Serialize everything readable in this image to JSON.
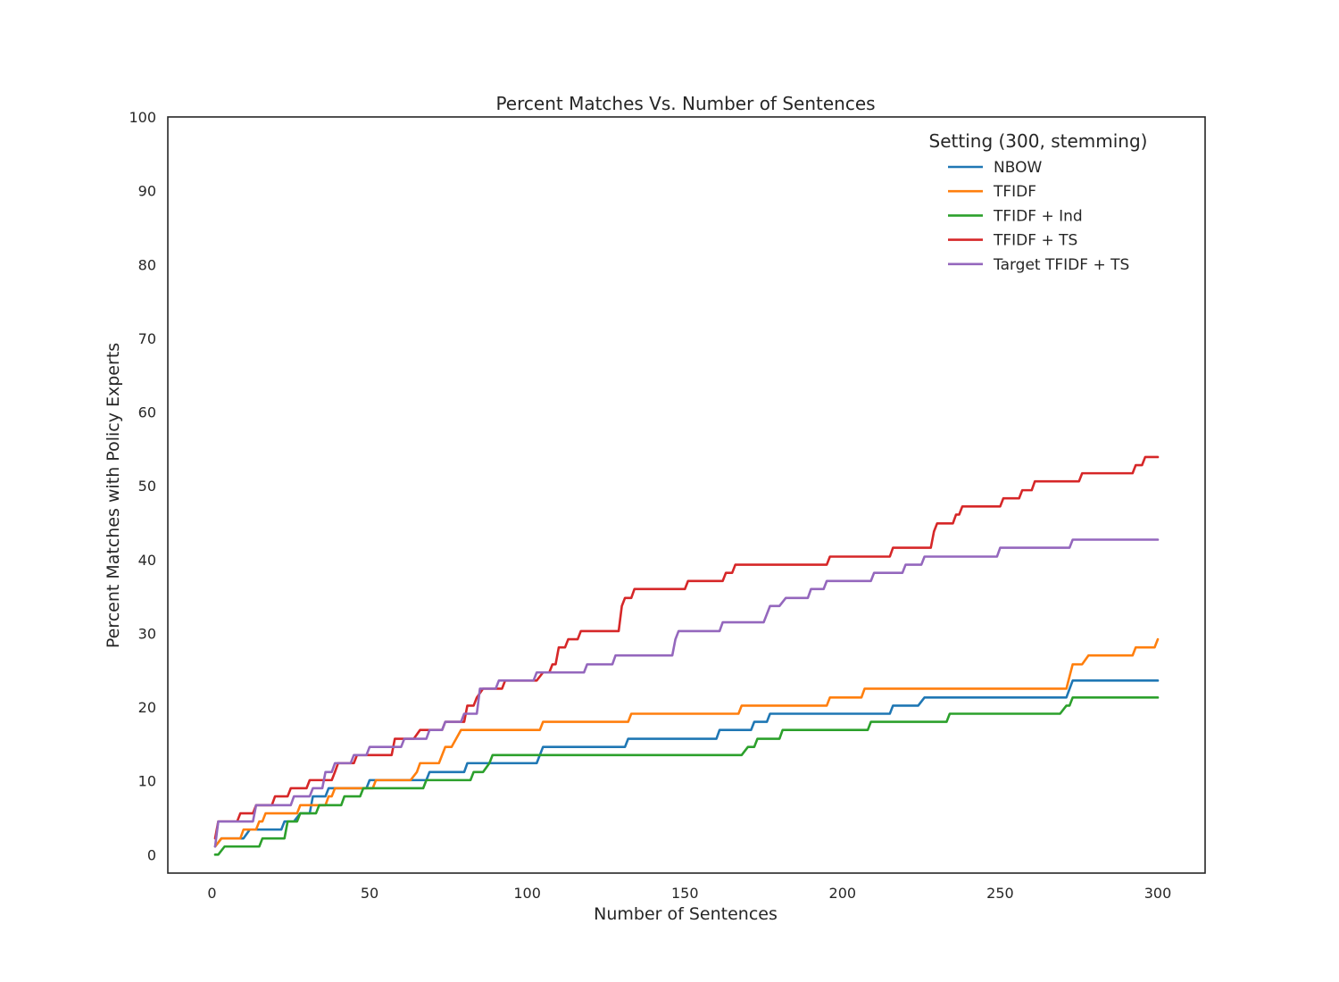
{
  "chart_data": {
    "type": "line",
    "title": "Percent Matches Vs. Number of Sentences",
    "xlabel": "Number of Sentences",
    "ylabel": "Percent Matches with Policy Experts",
    "xlim": [
      -14,
      315
    ],
    "ylim": [
      -2.5,
      100
    ],
    "xticks": [
      0,
      50,
      100,
      150,
      200,
      250,
      300
    ],
    "yticks": [
      0,
      10,
      20,
      30,
      40,
      50,
      60,
      70,
      80,
      90,
      100
    ],
    "xtick_labels": [
      "0",
      "50",
      "100",
      "150",
      "200",
      "250",
      "300"
    ],
    "ytick_labels": [
      "0",
      "10",
      "20",
      "30",
      "40",
      "50",
      "60",
      "70",
      "80",
      "90",
      "100"
    ],
    "grid": false,
    "legend": {
      "title": "Setting (300, stemming)",
      "placement": "top-right"
    },
    "series": [
      {
        "name": "NBOW",
        "color": "#1f77b4",
        "points": [
          [
            1,
            1.1
          ],
          [
            3,
            2.2
          ],
          [
            10,
            2.2
          ],
          [
            12,
            3.4
          ],
          [
            22,
            3.4
          ],
          [
            23,
            4.5
          ],
          [
            26,
            4.5
          ],
          [
            28,
            5.6
          ],
          [
            31,
            5.6
          ],
          [
            32,
            7.9
          ],
          [
            36,
            7.9
          ],
          [
            37,
            9.0
          ],
          [
            49,
            9.0
          ],
          [
            50,
            10.1
          ],
          [
            68,
            10.1
          ],
          [
            69,
            11.2
          ],
          [
            80,
            11.2
          ],
          [
            81,
            12.4
          ],
          [
            103,
            12.4
          ],
          [
            105,
            14.6
          ],
          [
            131,
            14.6
          ],
          [
            132,
            15.7
          ],
          [
            160,
            15.7
          ],
          [
            161,
            16.9
          ],
          [
            171,
            16.9
          ],
          [
            172,
            18.0
          ],
          [
            176,
            18.0
          ],
          [
            177,
            19.1
          ],
          [
            215,
            19.1
          ],
          [
            216,
            20.2
          ],
          [
            224,
            20.2
          ],
          [
            226,
            21.3
          ],
          [
            271,
            21.3
          ],
          [
            273,
            23.6
          ],
          [
            300,
            23.6
          ]
        ]
      },
      {
        "name": "TFIDF",
        "color": "#ff7f0e",
        "points": [
          [
            1,
            1.1
          ],
          [
            3,
            2.2
          ],
          [
            9,
            2.2
          ],
          [
            10,
            3.4
          ],
          [
            14,
            3.4
          ],
          [
            15,
            4.5
          ],
          [
            16,
            4.5
          ],
          [
            17,
            5.6
          ],
          [
            27,
            5.6
          ],
          [
            28,
            6.7
          ],
          [
            36,
            6.7
          ],
          [
            37,
            7.9
          ],
          [
            38,
            7.9
          ],
          [
            39,
            9.0
          ],
          [
            51,
            9.0
          ],
          [
            52,
            10.1
          ],
          [
            63,
            10.1
          ],
          [
            65,
            11.2
          ],
          [
            66,
            12.4
          ],
          [
            72,
            12.4
          ],
          [
            74,
            14.6
          ],
          [
            76,
            14.6
          ],
          [
            79,
            16.9
          ],
          [
            104,
            16.9
          ],
          [
            105,
            18.0
          ],
          [
            132,
            18.0
          ],
          [
            133,
            19.1
          ],
          [
            167,
            19.1
          ],
          [
            168,
            20.2
          ],
          [
            195,
            20.2
          ],
          [
            196,
            21.3
          ],
          [
            206,
            21.3
          ],
          [
            207,
            22.5
          ],
          [
            271,
            22.5
          ],
          [
            273,
            25.8
          ],
          [
            276,
            25.8
          ],
          [
            278,
            27.0
          ],
          [
            292,
            27.0
          ],
          [
            293,
            28.1
          ],
          [
            299,
            28.1
          ],
          [
            300,
            29.2
          ]
        ]
      },
      {
        "name": "TFIDF + Ind",
        "color": "#2ca02c",
        "points": [
          [
            1,
            0.0
          ],
          [
            2,
            0.0
          ],
          [
            4,
            1.1
          ],
          [
            15,
            1.1
          ],
          [
            16,
            2.2
          ],
          [
            23,
            2.2
          ],
          [
            24,
            4.5
          ],
          [
            27,
            4.5
          ],
          [
            28,
            5.6
          ],
          [
            33,
            5.6
          ],
          [
            34,
            6.7
          ],
          [
            41,
            6.7
          ],
          [
            42,
            7.9
          ],
          [
            47,
            7.9
          ],
          [
            48,
            9.0
          ],
          [
            67,
            9.0
          ],
          [
            68,
            10.1
          ],
          [
            82,
            10.1
          ],
          [
            83,
            11.2
          ],
          [
            86,
            11.2
          ],
          [
            88,
            12.4
          ],
          [
            89,
            13.5
          ],
          [
            168,
            13.5
          ],
          [
            170,
            14.6
          ],
          [
            172,
            14.6
          ],
          [
            173,
            15.7
          ],
          [
            180,
            15.7
          ],
          [
            181,
            16.9
          ],
          [
            208,
            16.9
          ],
          [
            209,
            18.0
          ],
          [
            233,
            18.0
          ],
          [
            234,
            19.1
          ],
          [
            269,
            19.1
          ],
          [
            271,
            20.2
          ],
          [
            272,
            20.2
          ],
          [
            273,
            21.3
          ],
          [
            300,
            21.3
          ]
        ]
      },
      {
        "name": "TFIDF + TS",
        "color": "#d62728",
        "points": [
          [
            1,
            2.2
          ],
          [
            2,
            4.5
          ],
          [
            8,
            4.5
          ],
          [
            9,
            5.6
          ],
          [
            13,
            5.6
          ],
          [
            14,
            6.7
          ],
          [
            19,
            6.7
          ],
          [
            20,
            7.9
          ],
          [
            24,
            7.9
          ],
          [
            25,
            9.0
          ],
          [
            30,
            9.0
          ],
          [
            31,
            10.1
          ],
          [
            38,
            10.1
          ],
          [
            39,
            11.2
          ],
          [
            40,
            12.4
          ],
          [
            45,
            12.4
          ],
          [
            46,
            13.5
          ],
          [
            57,
            13.5
          ],
          [
            58,
            15.7
          ],
          [
            64,
            15.7
          ],
          [
            66,
            16.9
          ],
          [
            73,
            16.9
          ],
          [
            74,
            18.0
          ],
          [
            80,
            18.0
          ],
          [
            81,
            20.2
          ],
          [
            83,
            20.2
          ],
          [
            84,
            21.3
          ],
          [
            86,
            22.5
          ],
          [
            92,
            22.5
          ],
          [
            93,
            23.6
          ],
          [
            103,
            23.6
          ],
          [
            105,
            24.7
          ],
          [
            107,
            24.7
          ],
          [
            108,
            25.8
          ],
          [
            109,
            25.8
          ],
          [
            110,
            28.1
          ],
          [
            112,
            28.1
          ],
          [
            113,
            29.2
          ],
          [
            116,
            29.2
          ],
          [
            117,
            30.3
          ],
          [
            129,
            30.3
          ],
          [
            130,
            33.7
          ],
          [
            131,
            34.8
          ],
          [
            133,
            34.8
          ],
          [
            134,
            36.0
          ],
          [
            150,
            36.0
          ],
          [
            151,
            37.1
          ],
          [
            162,
            37.1
          ],
          [
            163,
            38.2
          ],
          [
            165,
            38.2
          ],
          [
            166,
            39.3
          ],
          [
            195,
            39.3
          ],
          [
            196,
            40.4
          ],
          [
            215,
            40.4
          ],
          [
            216,
            41.6
          ],
          [
            228,
            41.6
          ],
          [
            229,
            43.8
          ],
          [
            230,
            44.9
          ],
          [
            235,
            44.9
          ],
          [
            236,
            46.1
          ],
          [
            237,
            46.1
          ],
          [
            238,
            47.2
          ],
          [
            250,
            47.2
          ],
          [
            251,
            48.3
          ],
          [
            256,
            48.3
          ],
          [
            257,
            49.4
          ],
          [
            260,
            49.4
          ],
          [
            261,
            50.6
          ],
          [
            275,
            50.6
          ],
          [
            276,
            51.7
          ],
          [
            292,
            51.7
          ],
          [
            293,
            52.8
          ],
          [
            295,
            52.8
          ],
          [
            296,
            53.9
          ],
          [
            300,
            53.9
          ]
        ]
      },
      {
        "name": "Target TFIDF + TS",
        "color": "#9467bd",
        "points": [
          [
            1,
            1.1
          ],
          [
            2,
            4.5
          ],
          [
            13,
            4.5
          ],
          [
            14,
            6.7
          ],
          [
            25,
            6.7
          ],
          [
            26,
            7.9
          ],
          [
            31,
            7.9
          ],
          [
            32,
            9.0
          ],
          [
            35,
            9.0
          ],
          [
            36,
            11.2
          ],
          [
            38,
            11.2
          ],
          [
            39,
            12.4
          ],
          [
            44,
            12.4
          ],
          [
            45,
            13.5
          ],
          [
            49,
            13.5
          ],
          [
            50,
            14.6
          ],
          [
            60,
            14.6
          ],
          [
            61,
            15.7
          ],
          [
            68,
            15.7
          ],
          [
            69,
            16.9
          ],
          [
            73,
            16.9
          ],
          [
            74,
            18.0
          ],
          [
            79,
            18.0
          ],
          [
            80,
            19.1
          ],
          [
            84,
            19.1
          ],
          [
            85,
            22.5
          ],
          [
            90,
            22.5
          ],
          [
            91,
            23.6
          ],
          [
            102,
            23.6
          ],
          [
            103,
            24.7
          ],
          [
            118,
            24.7
          ],
          [
            119,
            25.8
          ],
          [
            127,
            25.8
          ],
          [
            128,
            27.0
          ],
          [
            146,
            27.0
          ],
          [
            147,
            29.2
          ],
          [
            148,
            30.3
          ],
          [
            161,
            30.3
          ],
          [
            162,
            31.5
          ],
          [
            175,
            31.5
          ],
          [
            177,
            33.7
          ],
          [
            180,
            33.7
          ],
          [
            182,
            34.8
          ],
          [
            189,
            34.8
          ],
          [
            190,
            36.0
          ],
          [
            194,
            36.0
          ],
          [
            195,
            37.1
          ],
          [
            209,
            37.1
          ],
          [
            210,
            38.2
          ],
          [
            219,
            38.2
          ],
          [
            220,
            39.3
          ],
          [
            225,
            39.3
          ],
          [
            226,
            40.4
          ],
          [
            249,
            40.4
          ],
          [
            250,
            41.6
          ],
          [
            272,
            41.6
          ],
          [
            273,
            42.7
          ],
          [
            300,
            42.7
          ]
        ]
      }
    ]
  }
}
